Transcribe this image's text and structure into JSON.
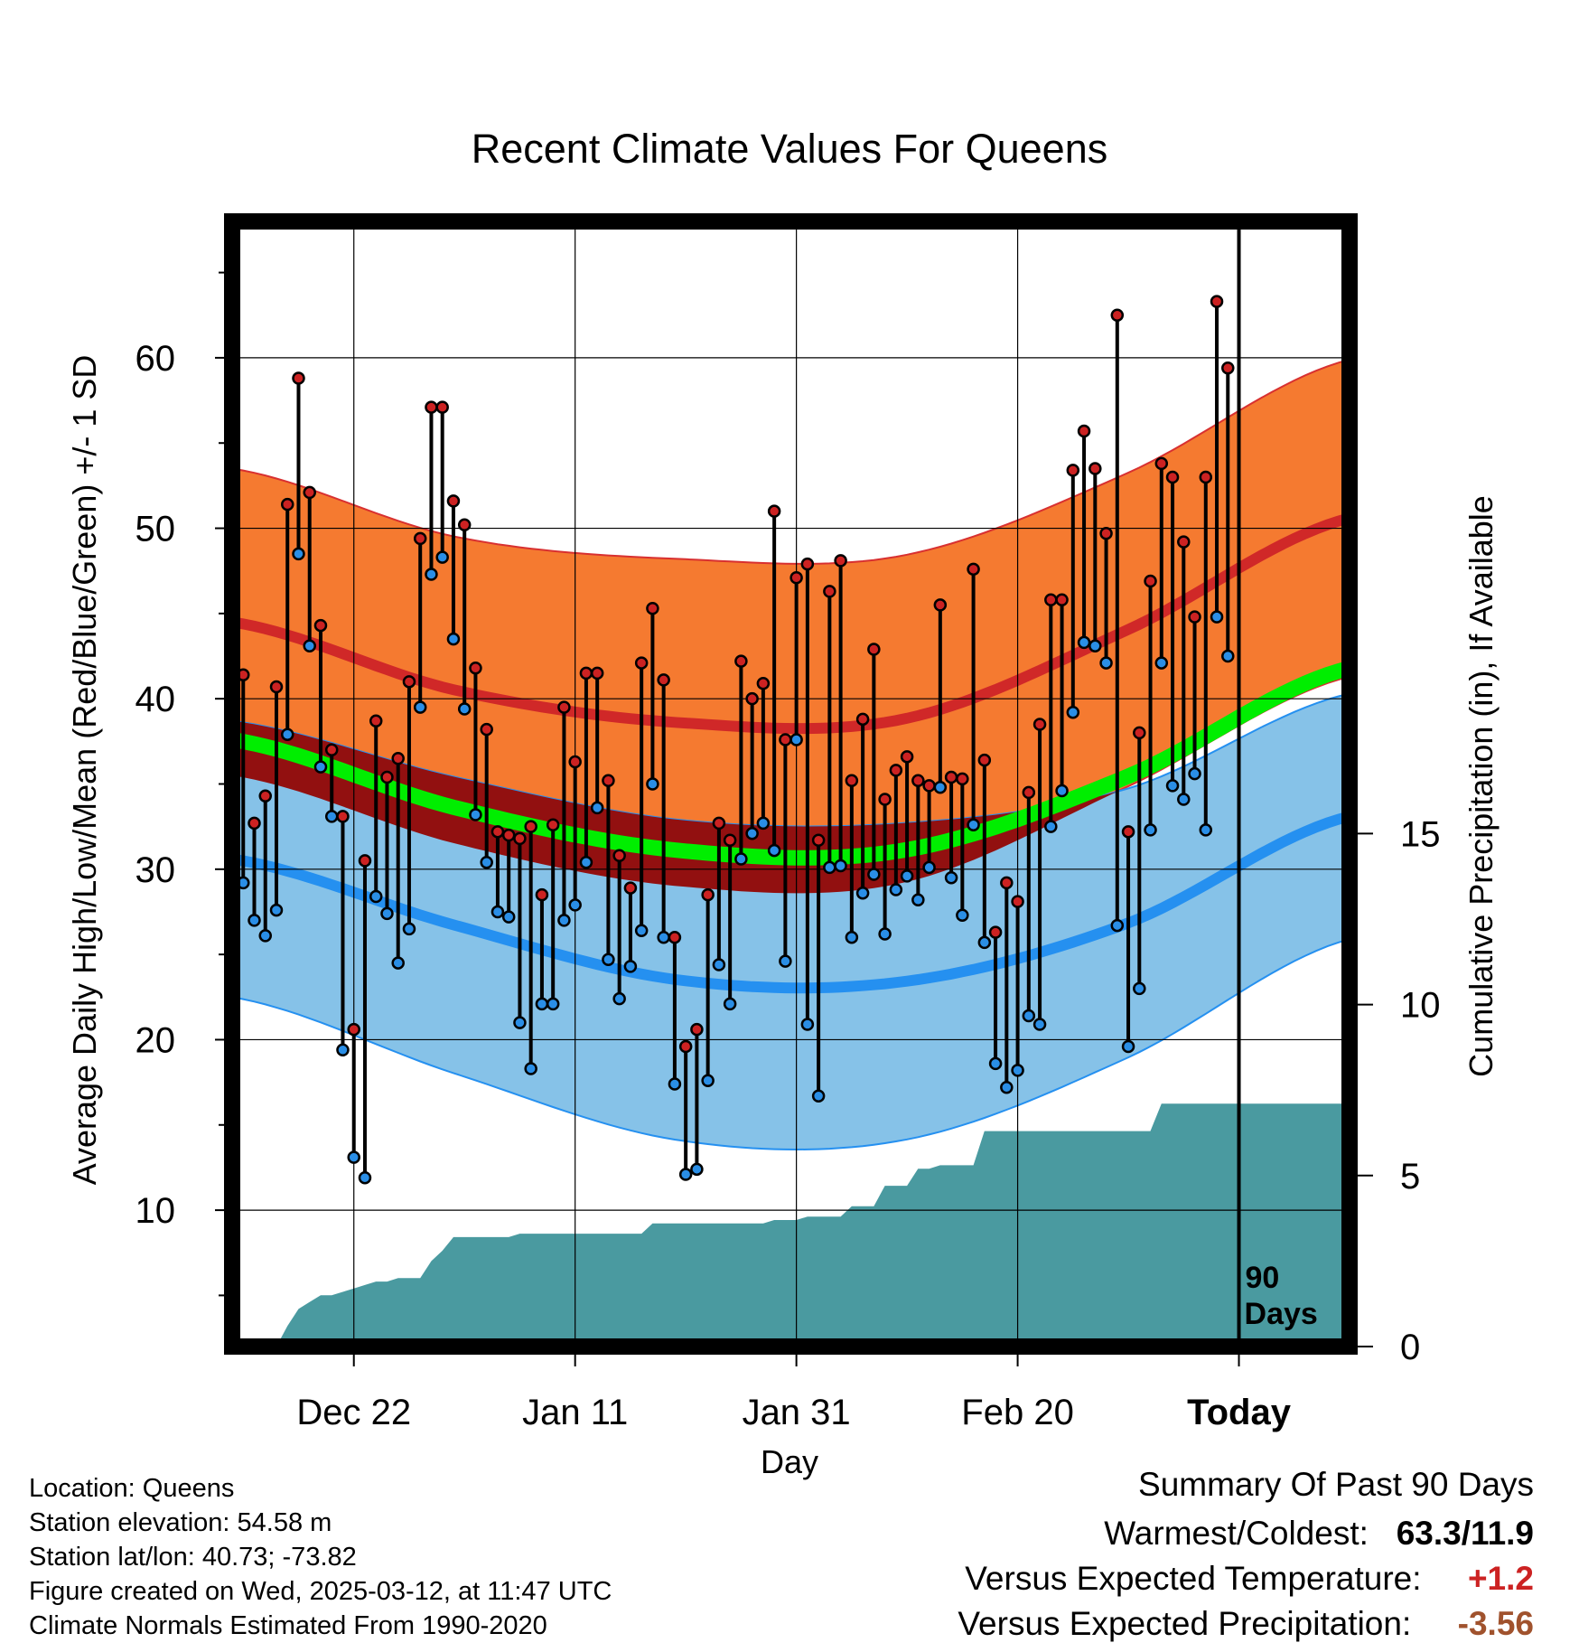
{
  "chart_data": {
    "type": "line",
    "title": "Recent Climate Values For Queens",
    "xlabel": "Day",
    "ylabel": "Average Daily High/Low/Mean (Red/Blue/Green) +/- 1 SD",
    "y2label": "Cumulative Precipitation (in), If Available",
    "x_ticks": [
      "Dec 22",
      "Jan 11",
      "Jan 31",
      "Feb 20",
      "Today"
    ],
    "today_marker": {
      "label_line1": "90",
      "label_line2": "Days"
    },
    "xlim_days": [
      -91,
      10
    ],
    "ylim": [
      2,
      68
    ],
    "y_ticks": [
      10,
      20,
      30,
      40,
      50,
      60
    ],
    "y2lim": [
      0,
      32.9
    ],
    "y2_ticks": [
      0,
      5,
      10,
      15
    ],
    "days_before_today": [
      -90,
      -89,
      -88,
      -87,
      -86,
      -85,
      -84,
      -83,
      -82,
      -81,
      -80,
      -79,
      -78,
      -77,
      -76,
      -75,
      -74,
      -73,
      -72,
      -71,
      -70,
      -69,
      -68,
      -67,
      -66,
      -65,
      -64,
      -63,
      -62,
      -61,
      -60,
      -59,
      -58,
      -57,
      -56,
      -55,
      -54,
      -53,
      -52,
      -51,
      -50,
      -49,
      -48,
      -47,
      -46,
      -45,
      -44,
      -43,
      -42,
      -41,
      -40,
      -39,
      -38,
      -37,
      -36,
      -35,
      -34,
      -33,
      -32,
      -31,
      -30,
      -29,
      -28,
      -27,
      -26,
      -25,
      -24,
      -23,
      -22,
      -21,
      -20,
      -19,
      -18,
      -17,
      -16,
      -15,
      -14,
      -13,
      -12,
      -11,
      -10,
      -9,
      -8,
      -7,
      -6,
      -5,
      -4,
      -3,
      -2,
      -1
    ],
    "series": [
      {
        "name": "High",
        "color": "#cc2222",
        "values": [
          41.4,
          32.7,
          34.3,
          40.7,
          51.4,
          58.8,
          52.1,
          44.3,
          37.0,
          33.1,
          20.6,
          30.5,
          38.7,
          35.4,
          36.5,
          41.0,
          49.4,
          57.1,
          57.1,
          51.6,
          50.2,
          41.8,
          38.2,
          32.2,
          32.0,
          31.8,
          32.5,
          28.5,
          32.6,
          39.5,
          36.3,
          41.5,
          41.5,
          35.2,
          30.8,
          28.9,
          42.1,
          45.3,
          41.1,
          26.0,
          19.6,
          20.6,
          28.5,
          32.7,
          31.7,
          42.2,
          40.0,
          40.9,
          51.0,
          37.6,
          47.1,
          47.9,
          31.7,
          46.3,
          48.1,
          35.2,
          38.8,
          42.9,
          34.1,
          35.8,
          36.6,
          35.2,
          34.9,
          45.5,
          35.4,
          35.3,
          47.6,
          36.4,
          26.3,
          29.2,
          28.1,
          34.5,
          38.5,
          45.8,
          45.8,
          53.4,
          55.7,
          53.5,
          49.7,
          62.5,
          32.2,
          38.0,
          46.9,
          53.8,
          53.0,
          49.2,
          44.8,
          53.0,
          63.3,
          59.4
        ]
      },
      {
        "name": "Low",
        "color": "#2a8ee6",
        "values": [
          29.2,
          27.0,
          26.1,
          27.6,
          37.9,
          48.5,
          43.1,
          36.0,
          33.1,
          19.4,
          13.1,
          11.9,
          28.4,
          27.4,
          24.5,
          26.5,
          39.5,
          47.3,
          48.3,
          43.5,
          39.4,
          33.2,
          30.4,
          27.5,
          27.2,
          21.0,
          18.3,
          22.1,
          22.1,
          27.0,
          27.9,
          30.4,
          33.6,
          24.7,
          22.4,
          24.3,
          26.4,
          35.0,
          26.0,
          17.4,
          12.1,
          12.4,
          17.6,
          24.4,
          22.1,
          30.6,
          32.1,
          32.7,
          31.1,
          24.6,
          37.6,
          20.9,
          16.7,
          30.1,
          30.2,
          26.0,
          28.6,
          29.7,
          26.2,
          28.8,
          29.6,
          28.2,
          30.1,
          34.8,
          29.5,
          27.3,
          32.6,
          25.7,
          18.6,
          17.2,
          18.2,
          21.4,
          20.9,
          32.5,
          34.6,
          39.2,
          43.3,
          43.1,
          42.1,
          26.7,
          19.6,
          23.0,
          32.3,
          42.1,
          34.9,
          34.1,
          35.6,
          32.3,
          44.8,
          42.5
        ]
      }
    ],
    "normals": {
      "high_color": "#d02828",
      "high_sd_color": "#f57a30",
      "low_color": "#2590f0",
      "low_sd_color": "#86c2e8",
      "mean_color": "#00ee00",
      "overlap_color": "#921010",
      "high": [
        44.5,
        40.5,
        38.6,
        38.8,
        44.0,
        50.6
      ],
      "high_sd": [
        9.0,
        9.0,
        9.6,
        9.6,
        9.2,
        9.3
      ],
      "low": [
        30.6,
        26.7,
        23.5,
        23.4,
        26.8,
        33.1
      ],
      "low_sd": [
        8.1,
        8.7,
        9.4,
        9.3,
        7.9,
        7.2
      ],
      "mean": [
        37.6,
        33.6,
        31.1,
        31.1,
        35.4,
        41.8
      ]
    },
    "precip": {
      "color": "#4a9aa0",
      "values": [
        0,
        0,
        0,
        0,
        0.6,
        1.1,
        1.3,
        1.5,
        1.5,
        1.6,
        1.7,
        1.8,
        1.9,
        1.9,
        2.0,
        2.0,
        2.0,
        2.5,
        2.8,
        3.2,
        3.2,
        3.2,
        3.2,
        3.2,
        3.2,
        3.3,
        3.3,
        3.3,
        3.3,
        3.3,
        3.3,
        3.3,
        3.3,
        3.3,
        3.3,
        3.3,
        3.3,
        3.6,
        3.6,
        3.6,
        3.6,
        3.6,
        3.6,
        3.6,
        3.6,
        3.6,
        3.6,
        3.6,
        3.7,
        3.7,
        3.7,
        3.8,
        3.8,
        3.8,
        3.8,
        4.1,
        4.1,
        4.1,
        4.7,
        4.7,
        4.7,
        5.2,
        5.2,
        5.3,
        5.3,
        5.3,
        5.3,
        6.3,
        6.3,
        6.3,
        6.3,
        6.3,
        6.3,
        6.3,
        6.3,
        6.3,
        6.3,
        6.3,
        6.3,
        6.3,
        6.3,
        6.3,
        6.3,
        7.1,
        7.1,
        7.1,
        7.1,
        7.1,
        7.1,
        7.1
      ]
    }
  },
  "footer": {
    "location": "Location: Queens",
    "elevation": "Station elevation: 54.58 m",
    "latlon": "Station lat/lon: 40.73; -73.82",
    "created": "Figure created on Wed, 2025-03-12, at 11:47 UTC",
    "normals": "Climate Normals Estimated From 1990-2020"
  },
  "summary": {
    "heading": "Summary Of Past 90 Days",
    "warmest_label": "Warmest/Coldest:",
    "warmest_value": "63.3/11.9",
    "temp_label": "Versus Expected Temperature:",
    "temp_value": "+1.2",
    "temp_color": "#cc2222",
    "precip_label": "Versus Expected Precipitation:",
    "precip_value": "-3.56",
    "precip_color": "#a0522d"
  }
}
